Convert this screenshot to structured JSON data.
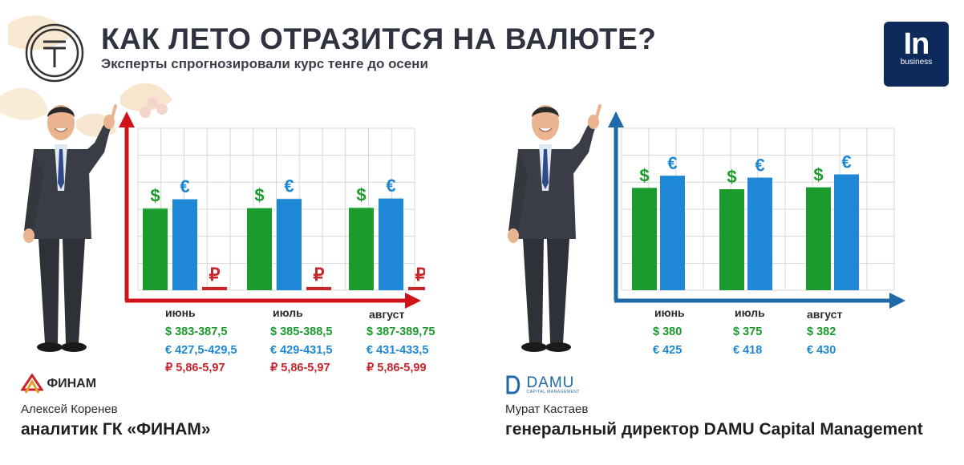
{
  "header": {
    "title": "КАК ЛЕТО ОТРАЗИТСЯ НА ВАЛЮТЕ?",
    "subtitle": "Эксперты спрогнозировали курс тенге до осени",
    "logo_text": "In",
    "logo_sub": "business"
  },
  "colors": {
    "usd": "#1b9a2e",
    "eur": "#1e88d6",
    "rub": "#c9262c",
    "axis_left": "#d0121b",
    "axis_right": "#1e6aa8"
  },
  "experts": [
    {
      "company": "ФИНАМ",
      "name": "Алексей Коренев",
      "role": "аналитик ГК «ФИНАМ»",
      "months": [
        "июнь",
        "июль",
        "август"
      ],
      "usd": [
        "$ 383-387,5",
        "$ 385-388,5",
        "$ 387-389,75"
      ],
      "eur": [
        "€ 427,5-429,5",
        "€ 429-431,5",
        "€ 431-433,5"
      ],
      "rub": [
        "₽ 5,86-5,97",
        "₽ 5,86-5,97",
        "₽ 5,86-5,99"
      ]
    },
    {
      "company": "DAMU",
      "company_sub": "CAPITAL MANAGEMENT",
      "name": "Мурат Кастаев",
      "role": "генеральный директор DAMU Capital Management",
      "months": [
        "июнь",
        "июль",
        "август"
      ],
      "usd": [
        "$ 380",
        "$ 375",
        "$ 382"
      ],
      "eur": [
        "€ 425",
        "€ 418",
        "€ 430"
      ]
    }
  ],
  "chart_data": [
    {
      "type": "bar",
      "categories": [
        "июнь",
        "июль",
        "август"
      ],
      "series": [
        {
          "symbol": "$",
          "low": [
            383,
            385,
            387
          ],
          "high": [
            387.5,
            388.5,
            389.75
          ]
        },
        {
          "symbol": "€",
          "low": [
            427.5,
            429,
            431
          ],
          "high": [
            429.5,
            431.5,
            433.5
          ]
        },
        {
          "symbol": "₽",
          "low": [
            5.86,
            5.86,
            5.86
          ],
          "high": [
            5.97,
            5.97,
            5.99
          ]
        }
      ]
    },
    {
      "type": "bar",
      "categories": [
        "июнь",
        "июль",
        "август"
      ],
      "series": [
        {
          "symbol": "$",
          "values": [
            380,
            375,
            382
          ]
        },
        {
          "symbol": "€",
          "values": [
            425,
            418,
            430
          ]
        }
      ]
    }
  ]
}
